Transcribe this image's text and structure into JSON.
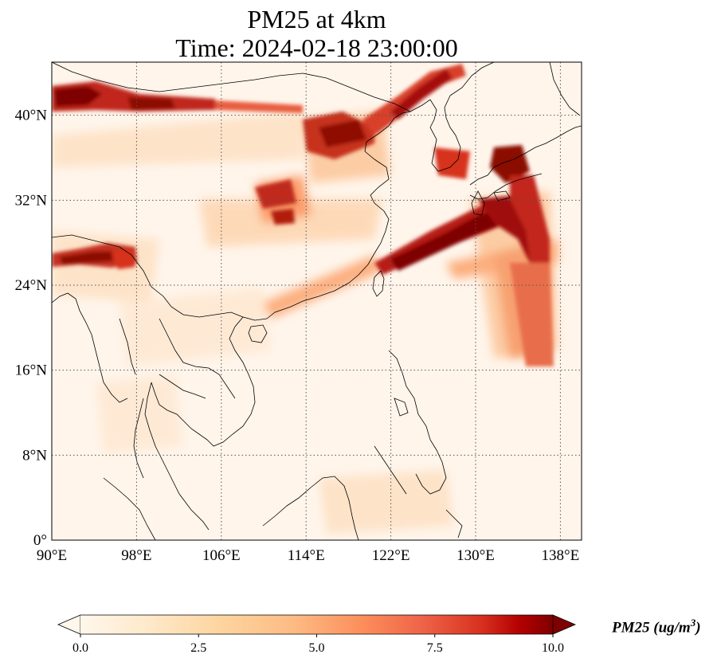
{
  "title": {
    "line1": "PM25 at 4km",
    "line2": "Time: 2024-02-18 23:00:00"
  },
  "map": {
    "lon_range": [
      90,
      140
    ],
    "lat_range": [
      0,
      45
    ],
    "lon_ticks": [
      {
        "value": 90,
        "label": "90°E"
      },
      {
        "value": 98,
        "label": "98°E"
      },
      {
        "value": 106,
        "label": "106°E"
      },
      {
        "value": 114,
        "label": "114°E"
      },
      {
        "value": 122,
        "label": "122°E"
      },
      {
        "value": 130,
        "label": "130°E"
      },
      {
        "value": 138,
        "label": "138°E"
      }
    ],
    "lat_ticks": [
      {
        "value": 0,
        "label": "0°"
      },
      {
        "value": 8,
        "label": "8°N"
      },
      {
        "value": 16,
        "label": "16°N"
      },
      {
        "value": 24,
        "label": "24°N"
      },
      {
        "value": 32,
        "label": "32°N"
      },
      {
        "value": 40,
        "label": "40°N"
      }
    ],
    "gridlines": "dotted",
    "colormap": "OrRd",
    "colors": {
      "background": "#fff5eb",
      "low": "#fee8c8",
      "mid": "#fdbb84",
      "high": "#e34a33",
      "max": "#7f0000"
    },
    "plumes": [
      {
        "from": [
          90,
          41.5
        ],
        "to": [
          98,
          41
        ],
        "value": 10
      },
      {
        "from": [
          98,
          40.8
        ],
        "to": [
          106,
          40.5
        ],
        "value": 9.5
      },
      {
        "from": [
          106,
          40.3
        ],
        "to": [
          114,
          40
        ],
        "value": 6
      },
      {
        "from": [
          114,
          38
        ],
        "to": [
          119,
          38
        ],
        "value": 8
      },
      {
        "from": [
          119,
          37.5
        ],
        "to": [
          127,
          44
        ],
        "value": 9
      },
      {
        "from": [
          110,
          33
        ],
        "to": [
          116,
          35
        ],
        "value": 7
      },
      {
        "from": [
          118,
          26
        ],
        "to": [
          130,
          31
        ],
        "value": 10
      },
      {
        "from": [
          130,
          31
        ],
        "to": [
          136,
          28
        ],
        "value": 9
      },
      {
        "from": [
          132,
          35
        ],
        "to": [
          136,
          28
        ],
        "value": 8
      },
      {
        "from": [
          90,
          26.5
        ],
        "to": [
          97,
          27.5
        ],
        "value": 9
      },
      {
        "from": [
          106,
          29
        ],
        "to": [
          118,
          29.5
        ],
        "value": 3
      }
    ]
  },
  "colorbar": {
    "min": 0.0,
    "max": 10.0,
    "ticks": [
      {
        "value": 0.0,
        "label": "0.0"
      },
      {
        "value": 2.5,
        "label": "2.5"
      },
      {
        "value": 5.0,
        "label": "5.0"
      },
      {
        "value": 7.5,
        "label": "7.5"
      },
      {
        "value": 10.0,
        "label": "10.0"
      }
    ],
    "extend": "both",
    "label_main": "PM25 (ug/m",
    "label_sup": "3",
    "label_close": ")"
  }
}
